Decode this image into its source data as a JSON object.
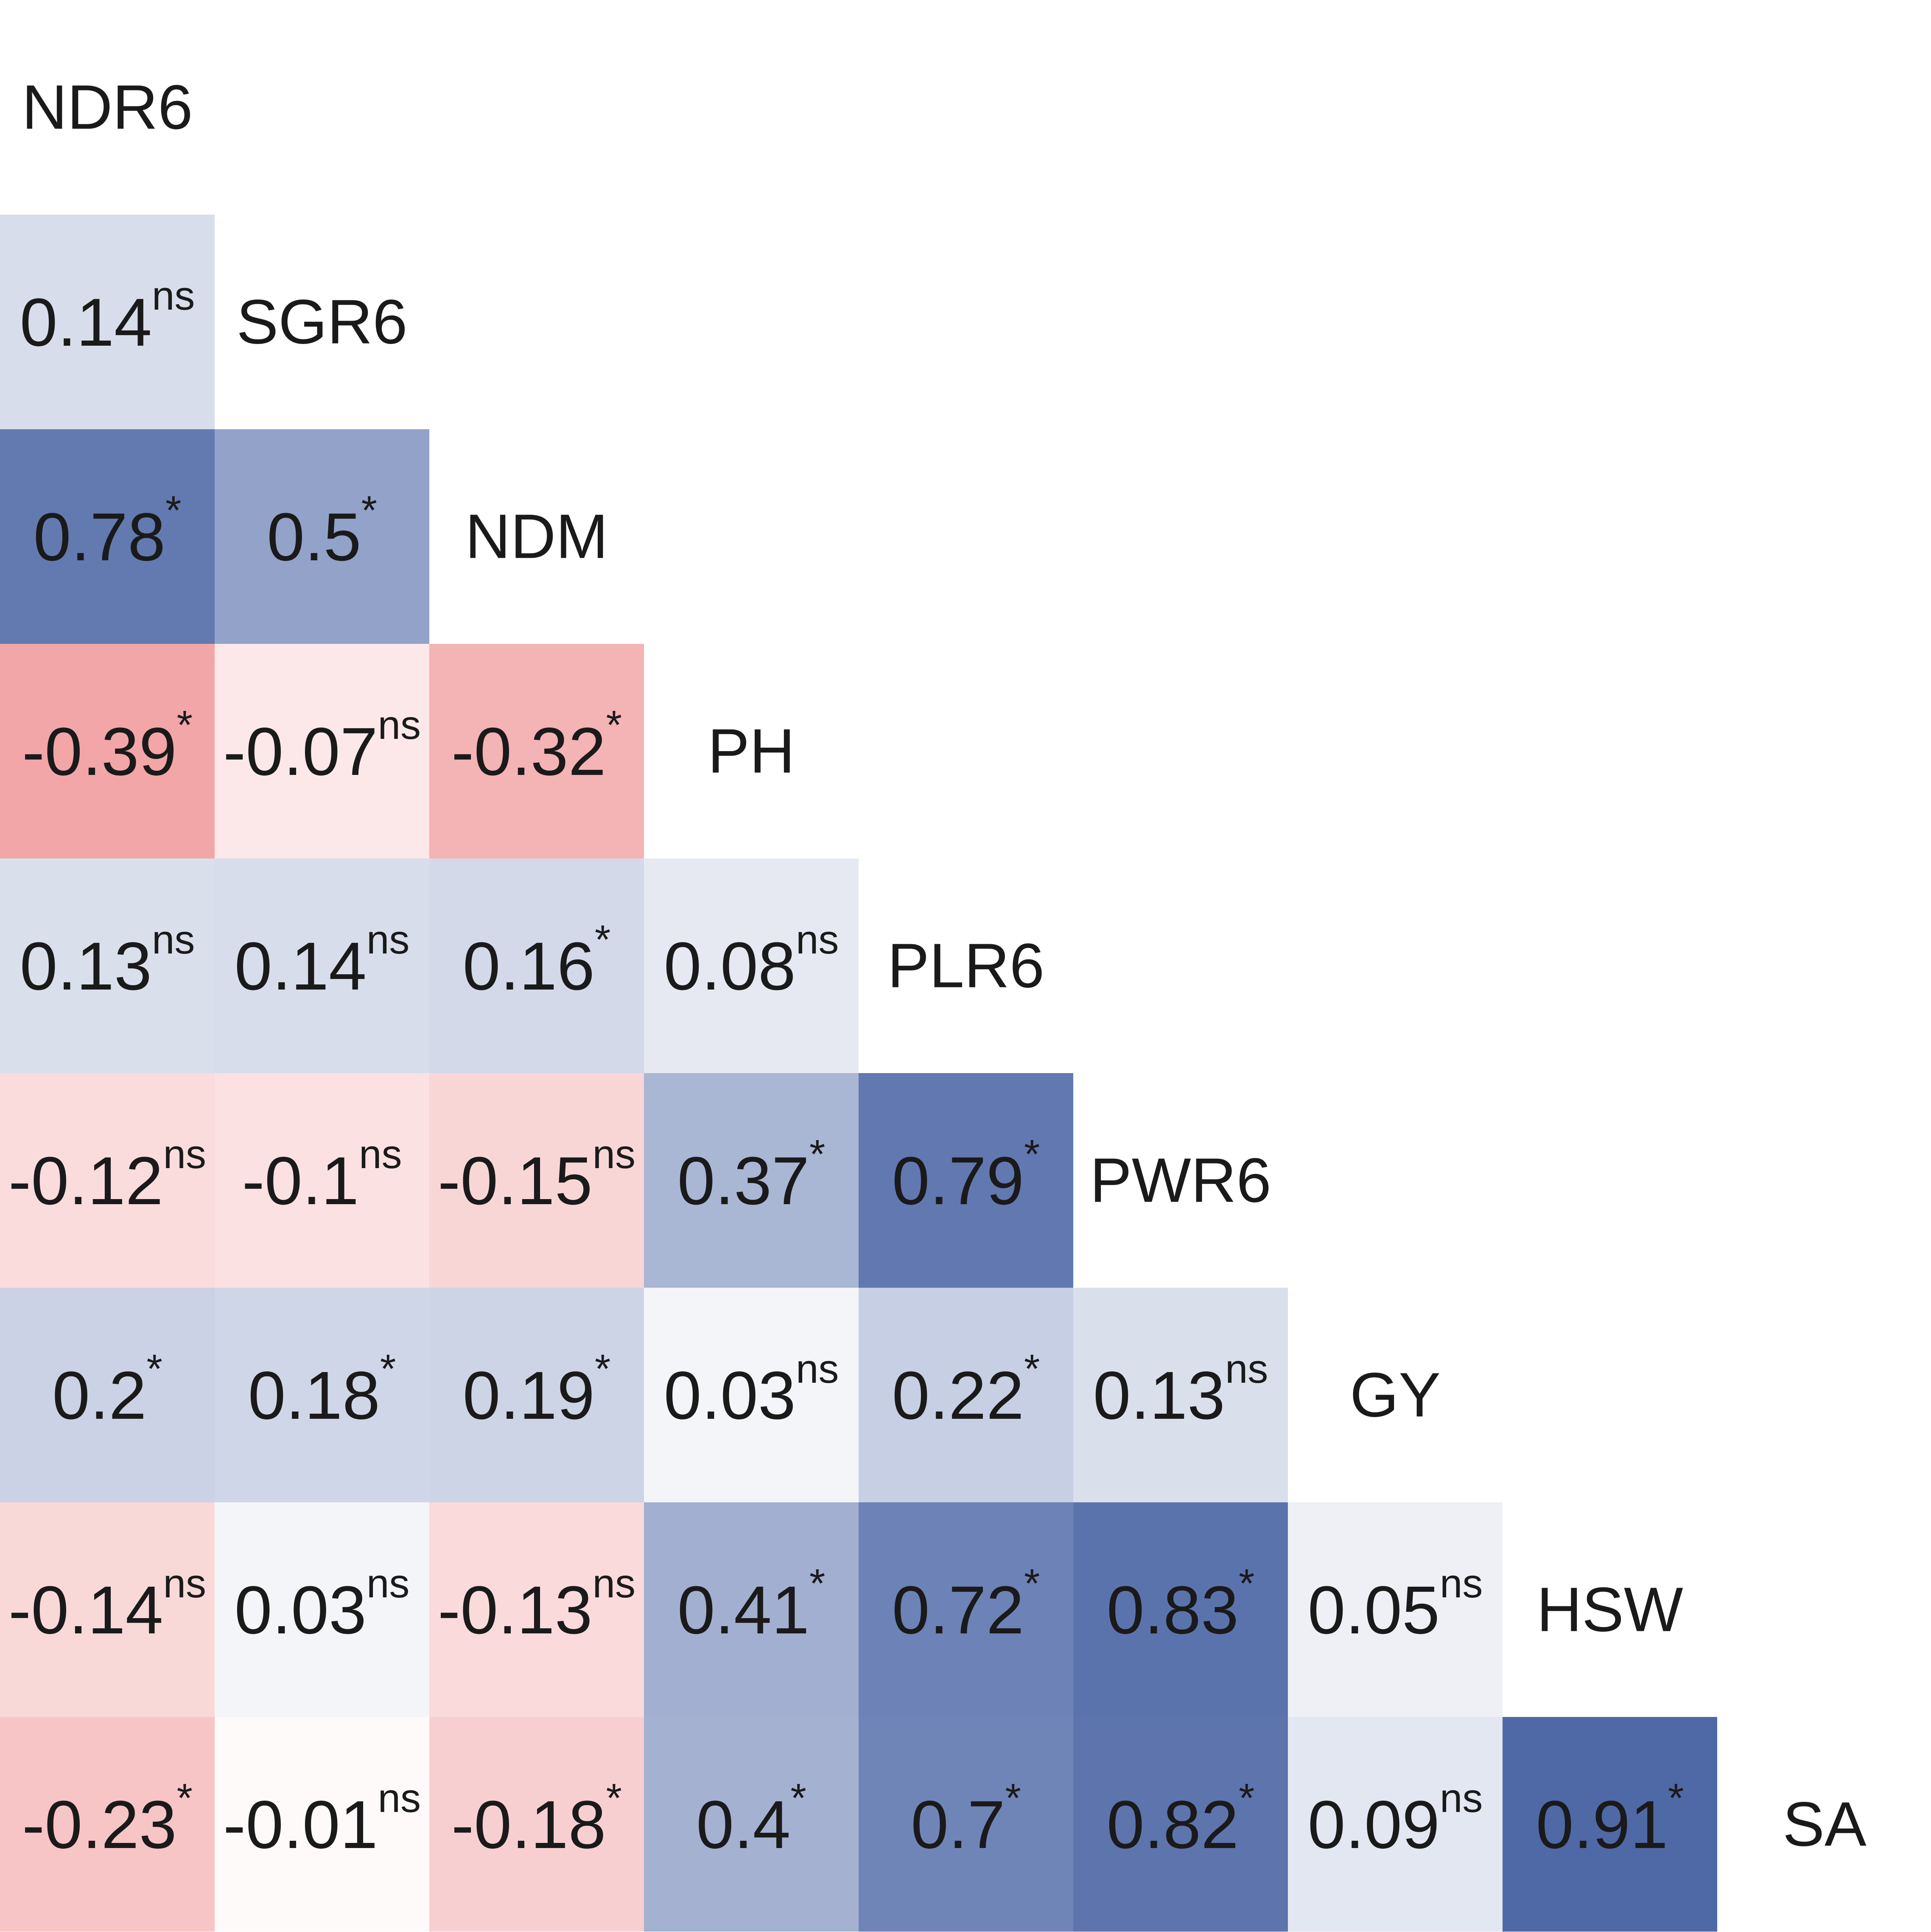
{
  "chart_data": {
    "type": "heatmap",
    "title": "",
    "variables": [
      "NDR6",
      "SGR6",
      "NDM",
      "PH",
      "PLR6",
      "PWR6",
      "GY",
      "HSW",
      "SA"
    ],
    "layout": "lower-triangle",
    "color_scale": {
      "negative": "#e54b4e",
      "zero": "#ffffff",
      "positive": "#4a64a4",
      "min": -1,
      "max": 1
    },
    "cells": [
      {
        "row": "SGR6",
        "col": "NDR6",
        "value": 0.14,
        "label": "0.14",
        "sig": "ns"
      },
      {
        "row": "NDM",
        "col": "NDR6",
        "value": 0.78,
        "label": "0.78",
        "sig": "*"
      },
      {
        "row": "NDM",
        "col": "SGR6",
        "value": 0.5,
        "label": "0.5",
        "sig": "*"
      },
      {
        "row": "PH",
        "col": "NDR6",
        "value": -0.39,
        "label": "-0.39",
        "sig": "*"
      },
      {
        "row": "PH",
        "col": "SGR6",
        "value": -0.07,
        "label": "-0.07",
        "sig": "ns"
      },
      {
        "row": "PH",
        "col": "NDM",
        "value": -0.32,
        "label": "-0.32",
        "sig": "*"
      },
      {
        "row": "PLR6",
        "col": "NDR6",
        "value": 0.13,
        "label": "0.13",
        "sig": "ns"
      },
      {
        "row": "PLR6",
        "col": "SGR6",
        "value": 0.14,
        "label": "0.14",
        "sig": "ns"
      },
      {
        "row": "PLR6",
        "col": "NDM",
        "value": 0.16,
        "label": "0.16",
        "sig": "*"
      },
      {
        "row": "PLR6",
        "col": "PH",
        "value": 0.08,
        "label": "0.08",
        "sig": "ns"
      },
      {
        "row": "PWR6",
        "col": "NDR6",
        "value": -0.12,
        "label": "-0.12",
        "sig": "ns"
      },
      {
        "row": "PWR6",
        "col": "SGR6",
        "value": -0.1,
        "label": "-0.1",
        "sig": "ns"
      },
      {
        "row": "PWR6",
        "col": "NDM",
        "value": -0.15,
        "label": "-0.15",
        "sig": "ns"
      },
      {
        "row": "PWR6",
        "col": "PH",
        "value": 0.37,
        "label": "0.37",
        "sig": "*"
      },
      {
        "row": "PWR6",
        "col": "PLR6",
        "value": 0.79,
        "label": "0.79",
        "sig": "*"
      },
      {
        "row": "GY",
        "col": "NDR6",
        "value": 0.2,
        "label": "0.2",
        "sig": "*"
      },
      {
        "row": "GY",
        "col": "SGR6",
        "value": 0.18,
        "label": "0.18",
        "sig": "*"
      },
      {
        "row": "GY",
        "col": "NDM",
        "value": 0.19,
        "label": "0.19",
        "sig": "*"
      },
      {
        "row": "GY",
        "col": "PH",
        "value": 0.03,
        "label": "0.03",
        "sig": "ns"
      },
      {
        "row": "GY",
        "col": "PLR6",
        "value": 0.22,
        "label": "0.22",
        "sig": "*"
      },
      {
        "row": "GY",
        "col": "PWR6",
        "value": 0.13,
        "label": "0.13",
        "sig": "ns"
      },
      {
        "row": "HSW",
        "col": "NDR6",
        "value": -0.14,
        "label": "-0.14",
        "sig": "ns"
      },
      {
        "row": "HSW",
        "col": "SGR6",
        "value": 0.03,
        "label": "0.03",
        "sig": "ns"
      },
      {
        "row": "HSW",
        "col": "NDM",
        "value": -0.13,
        "label": "-0.13",
        "sig": "ns"
      },
      {
        "row": "HSW",
        "col": "PH",
        "value": 0.41,
        "label": "0.41",
        "sig": "*"
      },
      {
        "row": "HSW",
        "col": "PLR6",
        "value": 0.72,
        "label": "0.72",
        "sig": "*"
      },
      {
        "row": "HSW",
        "col": "PWR6",
        "value": 0.83,
        "label": "0.83",
        "sig": "*"
      },
      {
        "row": "HSW",
        "col": "GY",
        "value": 0.05,
        "label": "0.05",
        "sig": "ns"
      },
      {
        "row": "SA",
        "col": "NDR6",
        "value": -0.23,
        "label": "-0.23",
        "sig": "*"
      },
      {
        "row": "SA",
        "col": "SGR6",
        "value": -0.01,
        "label": "-0.01",
        "sig": "ns"
      },
      {
        "row": "SA",
        "col": "NDM",
        "value": -0.18,
        "label": "-0.18",
        "sig": "*"
      },
      {
        "row": "SA",
        "col": "PH",
        "value": 0.4,
        "label": "0.4",
        "sig": "*"
      },
      {
        "row": "SA",
        "col": "PLR6",
        "value": 0.7,
        "label": "0.7",
        "sig": "*"
      },
      {
        "row": "SA",
        "col": "PWR6",
        "value": 0.82,
        "label": "0.82",
        "sig": "*"
      },
      {
        "row": "SA",
        "col": "GY",
        "value": 0.09,
        "label": "0.09",
        "sig": "ns"
      },
      {
        "row": "SA",
        "col": "HSW",
        "value": 0.91,
        "label": "0.91",
        "sig": "*"
      }
    ]
  }
}
